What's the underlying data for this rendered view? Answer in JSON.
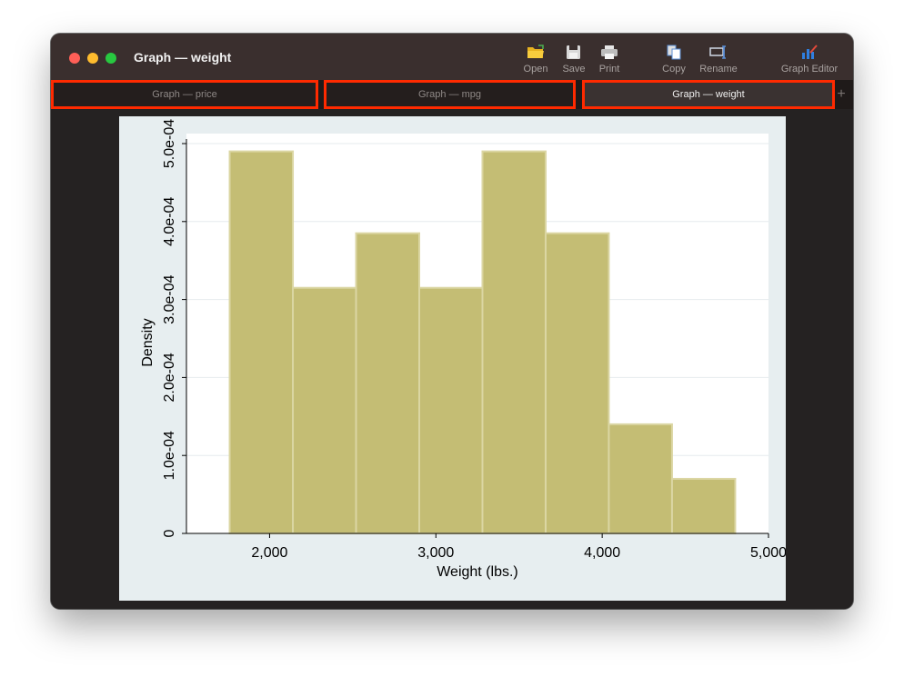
{
  "window": {
    "title": "Graph — weight"
  },
  "toolbar": {
    "open_label": "Open",
    "save_label": "Save",
    "print_label": "Print",
    "copy_label": "Copy",
    "rename_label": "Rename",
    "graph_editor_label": "Graph Editor"
  },
  "tabs": [
    {
      "label": "Graph — price",
      "active": false
    },
    {
      "label": "Graph — mpg",
      "active": false
    },
    {
      "label": "Graph — weight",
      "active": true
    }
  ],
  "add_tab_label": "+",
  "colors": {
    "bar_fill": "#c4bd74",
    "bar_edge": "#dbd6a3",
    "plot_bg": "#ffffff",
    "graph_bg": "#e7eef0",
    "highlight": "#ff2a00"
  },
  "chart_data": {
    "type": "bar",
    "xlabel": "Weight (lbs.)",
    "ylabel": "Density",
    "xlim": [
      1500,
      5000
    ],
    "ylim": [
      0,
      0.0005
    ],
    "x_ticks": [
      {
        "value": 2000,
        "label": "2,000"
      },
      {
        "value": 3000,
        "label": "3,000"
      },
      {
        "value": 4000,
        "label": "4,000"
      },
      {
        "value": 5000,
        "label": "5,000"
      }
    ],
    "y_ticks": [
      {
        "value": 0,
        "label": "0"
      },
      {
        "value": 0.0001,
        "label": "1.0e-04"
      },
      {
        "value": 0.0002,
        "label": "2.0e-04"
      },
      {
        "value": 0.0003,
        "label": "3.0e-04"
      },
      {
        "value": 0.0004,
        "label": "4.0e-04"
      },
      {
        "value": 0.0005,
        "label": "5.0e-04"
      }
    ],
    "grid": true,
    "bins": [
      {
        "start": 1760,
        "end": 2140,
        "density": 0.00049
      },
      {
        "start": 2140,
        "end": 2520,
        "density": 0.000315
      },
      {
        "start": 2520,
        "end": 2900,
        "density": 0.000385
      },
      {
        "start": 2900,
        "end": 3280,
        "density": 0.000315
      },
      {
        "start": 3280,
        "end": 3660,
        "density": 0.00049
      },
      {
        "start": 3660,
        "end": 4040,
        "density": 0.000385
      },
      {
        "start": 4040,
        "end": 4420,
        "density": 0.00014
      },
      {
        "start": 4420,
        "end": 4800,
        "density": 7e-05
      }
    ]
  }
}
